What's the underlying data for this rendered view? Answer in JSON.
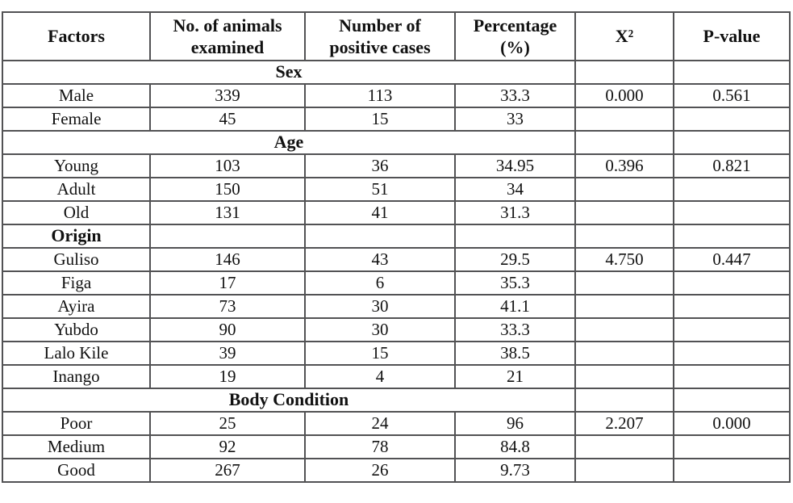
{
  "page": {
    "background_color": "#ffffff",
    "border_color": "#525254",
    "text_color": "#111111"
  },
  "table": {
    "columns": [
      "Factors",
      "No. of animals\nexamined",
      "Number of\npositive cases",
      "Percentage\n(%)",
      "X²",
      "P-value"
    ],
    "rows": [
      {
        "type": "section_span",
        "label": "Sex"
      },
      {
        "type": "data",
        "cells": [
          "Male",
          "339",
          "113",
          "33.3",
          "0.000",
          "0.561"
        ]
      },
      {
        "type": "data",
        "cells": [
          "Female",
          "45",
          "15",
          "33",
          "",
          ""
        ]
      },
      {
        "type": "section_span",
        "label": "Age"
      },
      {
        "type": "data",
        "cells": [
          "Young",
          "103",
          "36",
          "34.95",
          "0.396",
          "0.821"
        ]
      },
      {
        "type": "data",
        "cells": [
          "Adult",
          "150",
          "51",
          "34",
          "",
          ""
        ]
      },
      {
        "type": "data",
        "cells": [
          "Old",
          "131",
          "41",
          "31.3",
          "",
          ""
        ]
      },
      {
        "type": "section_cell",
        "label": "Origin"
      },
      {
        "type": "data",
        "cells": [
          "Guliso",
          "146",
          "43",
          "29.5",
          "4.750",
          "0.447"
        ]
      },
      {
        "type": "data",
        "cells": [
          "Figa",
          "17",
          "6",
          "35.3",
          "",
          ""
        ]
      },
      {
        "type": "data",
        "cells": [
          "Ayira",
          "73",
          "30",
          "41.1",
          "",
          ""
        ]
      },
      {
        "type": "data",
        "cells": [
          "Yubdo",
          "90",
          "30",
          "33.3",
          "",
          ""
        ]
      },
      {
        "type": "data",
        "cells": [
          "Lalo Kile",
          "39",
          "15",
          "38.5",
          "",
          ""
        ]
      },
      {
        "type": "data",
        "cells": [
          "Inango",
          "19",
          "4",
          "21",
          "",
          ""
        ]
      },
      {
        "type": "section_span",
        "label": "Body Condition"
      },
      {
        "type": "data",
        "cells": [
          "Poor",
          "25",
          "24",
          "96",
          "2.207",
          "0.000"
        ]
      },
      {
        "type": "data",
        "cells": [
          "Medium",
          "92",
          "78",
          "84.8",
          "",
          ""
        ]
      },
      {
        "type": "data",
        "cells": [
          "Good",
          "267",
          "26",
          "9.73",
          "",
          ""
        ]
      }
    ]
  }
}
